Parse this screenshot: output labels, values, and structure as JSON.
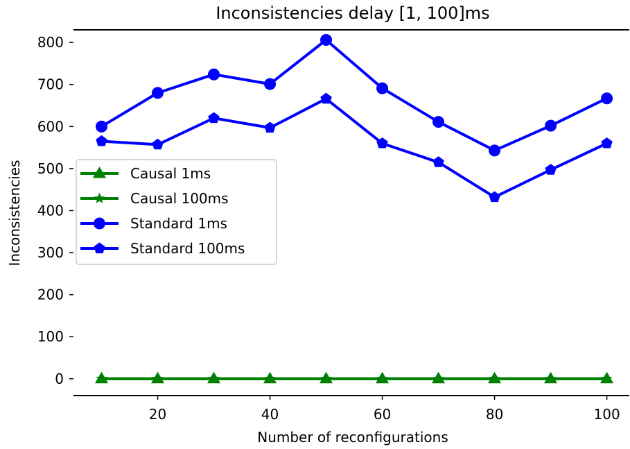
{
  "chart_data": {
    "type": "line",
    "title": "Inconsistencies delay [1, 100]ms",
    "xlabel": "Number of reconfigurations",
    "ylabel": "Inconsistencies",
    "x": [
      10,
      20,
      30,
      40,
      50,
      60,
      70,
      80,
      90,
      100
    ],
    "xlim": [
      5,
      104
    ],
    "ylim": [
      -40,
      830
    ],
    "xticks": [
      20,
      40,
      60,
      80,
      100
    ],
    "yticks": [
      0,
      100,
      200,
      300,
      400,
      500,
      600,
      700,
      800
    ],
    "grid": false,
    "legend_position": "center-left",
    "series": [
      {
        "name": "Causal 1ms",
        "color": "#008000",
        "marker": "triangle",
        "values": [
          0,
          0,
          0,
          0,
          0,
          0,
          0,
          0,
          0,
          0
        ]
      },
      {
        "name": "Causal 100ms",
        "color": "#008000",
        "marker": "star",
        "values": [
          0,
          0,
          0,
          0,
          0,
          0,
          0,
          0,
          0,
          0
        ]
      },
      {
        "name": "Standard 1ms",
        "color": "#0000ff",
        "marker": "circle",
        "values": [
          600,
          680,
          724,
          701,
          806,
          691,
          611,
          543,
          602,
          667
        ]
      },
      {
        "name": "Standard 100ms",
        "color": "#0000ff",
        "marker": "pentagon",
        "values": [
          565,
          557,
          620,
          597,
          666,
          560,
          515,
          432,
          497,
          560
        ]
      }
    ]
  }
}
